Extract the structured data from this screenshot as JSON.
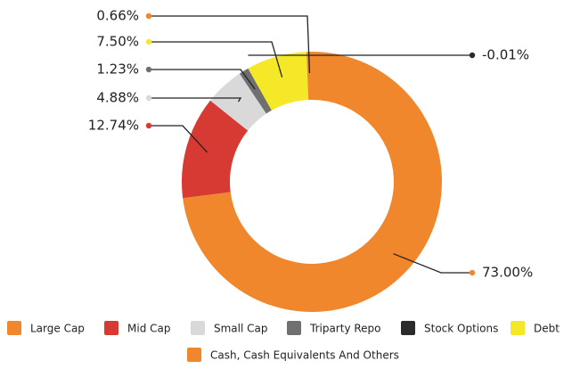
{
  "chart_data": {
    "type": "donut",
    "categories": [
      "Large Cap",
      "Mid Cap",
      "Small Cap",
      "Triparty Repo",
      "Stock Options",
      "Debt",
      "Cash, Cash Equivalents And Others"
    ],
    "values": [
      73.0,
      12.74,
      4.88,
      1.23,
      -0.01,
      7.5,
      0.66
    ],
    "value_labels": [
      "73.00%",
      "12.74%",
      "4.88%",
      "1.23%",
      "-0.01%",
      "7.50%",
      "0.66%"
    ],
    "colors": [
      "#f0872c",
      "#d63a32",
      "#d9d9d9",
      "#707070",
      "#2b2b2b",
      "#f5e829",
      "#f0872c"
    ],
    "legend": "bottom"
  }
}
